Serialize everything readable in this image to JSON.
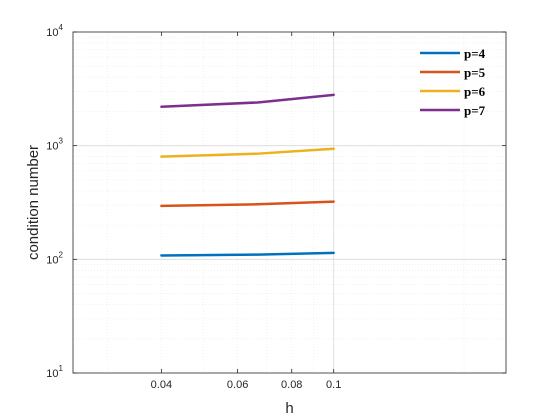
{
  "chart_data": {
    "type": "line",
    "xlabel": "h",
    "ylabel": "condition number",
    "xscale": "log",
    "yscale": "log",
    "xlim": [
      0.025,
      0.25
    ],
    "ylim": [
      10,
      10000
    ],
    "xticks": [
      {
        "value": 0.04,
        "label": "0.04"
      },
      {
        "value": 0.06,
        "label": "0.06"
      },
      {
        "value": 0.08,
        "label": "0.08"
      },
      {
        "value": 0.1,
        "label": "0.1"
      }
    ],
    "yticks": [
      {
        "value": 10,
        "base": "10",
        "exp": "1"
      },
      {
        "value": 100,
        "base": "10",
        "exp": "2"
      },
      {
        "value": 1000,
        "base": "10",
        "exp": "3"
      },
      {
        "value": 10000,
        "base": "10",
        "exp": "4"
      }
    ],
    "grid": true,
    "minor_grid": true,
    "legend_position": "top-right",
    "x": [
      0.04,
      0.0667,
      0.1
    ],
    "series": [
      {
        "name": "p=4",
        "color": "#0072BD",
        "values": [
          108,
          110,
          114
        ]
      },
      {
        "name": "p=5",
        "color": "#D95319",
        "values": [
          295,
          305,
          322
        ]
      },
      {
        "name": "p=6",
        "color": "#EDB120",
        "values": [
          800,
          850,
          940
        ]
      },
      {
        "name": "p=7",
        "color": "#7E2F8E",
        "values": [
          2200,
          2400,
          2800
        ]
      }
    ]
  }
}
